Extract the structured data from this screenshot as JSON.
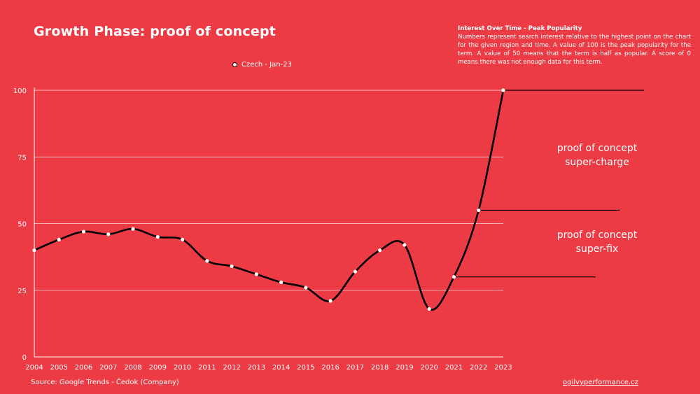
{
  "header": {
    "title": "Growth Phase: proof of concept"
  },
  "info": {
    "title": "Interest Over Time - Peak Popularity",
    "body": "Numbers represent search interest relative to the highest point on the chart for the given region and time. A value of 100 is the peak popularity for the term. A value of 50 means that the term is half as popular. A score of 0 means there was not enough data for this term."
  },
  "footer": {
    "source": "Source: Google Trends - Čedok (Company)",
    "site": "ogilvyperformance.cz"
  },
  "annotations": {
    "upper": [
      "proof of concept",
      "super-charge"
    ],
    "lower": [
      "proof of concept",
      "super-fix"
    ]
  },
  "colors": {
    "background": "#ec3b44",
    "line": "#000000",
    "text": "#ffffff"
  },
  "chart_data": {
    "type": "line",
    "title": "Growth Phase: proof of concept",
    "x": [
      "2004",
      "2005",
      "2006",
      "2007",
      "2008",
      "2009",
      "2010",
      "2011",
      "2012",
      "2013",
      "2014",
      "2015",
      "2016",
      "2017",
      "2018",
      "2019",
      "2020",
      "2021",
      "2022",
      "2023"
    ],
    "series": [
      {
        "name": "Czech - Jan-23",
        "values": [
          40,
          44,
          47,
          46,
          48,
          45,
          44,
          36,
          34,
          31,
          28,
          26,
          21,
          32,
          40,
          42,
          18,
          30,
          55,
          100
        ]
      }
    ],
    "yticks": [
      0,
      25,
      50,
      75,
      100
    ],
    "ylim": [
      0,
      100
    ],
    "grid": "horizontal",
    "legend": "top-center",
    "markers": [
      {
        "x": "2021",
        "y": 30
      },
      {
        "x": "2022",
        "y": 55
      },
      {
        "x": "2023",
        "y": 100
      }
    ]
  }
}
